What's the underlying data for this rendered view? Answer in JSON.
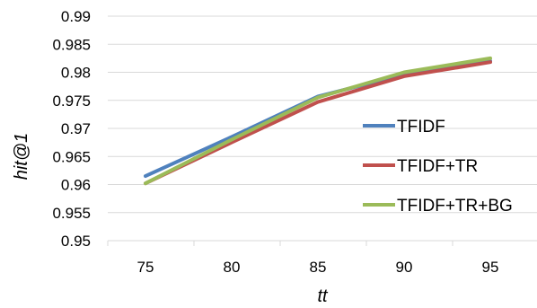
{
  "chart_data": {
    "type": "line",
    "title": "",
    "xlabel": "tt",
    "ylabel": "hit@1",
    "x": [
      75,
      80,
      85,
      90,
      95
    ],
    "x_tick_labels": [
      "75",
      "80",
      "85",
      "90",
      "95"
    ],
    "ylim": [
      0.95,
      0.99
    ],
    "y_ticks": [
      0.95,
      0.955,
      0.96,
      0.965,
      0.97,
      0.975,
      0.98,
      0.985,
      0.99
    ],
    "y_tick_labels": [
      "0.95",
      "0.955",
      "0.96",
      "0.965",
      "0.97",
      "0.975",
      "0.98",
      "0.985",
      "0.99"
    ],
    "grid": "horizontal",
    "legend_position": "right",
    "series": [
      {
        "name": "TFIDF",
        "color": "#4F81BD",
        "values": [
          0.9615,
          0.9685,
          0.9757,
          0.9796,
          0.982
        ]
      },
      {
        "name": "TFIDF+TR",
        "color": "#C0504D",
        "values": [
          0.9602,
          0.9675,
          0.9747,
          0.9793,
          0.9818
        ]
      },
      {
        "name": "TFIDF+TR+BG",
        "color": "#9BBB59",
        "values": [
          0.9602,
          0.968,
          0.9755,
          0.98,
          0.9825
        ]
      }
    ]
  }
}
